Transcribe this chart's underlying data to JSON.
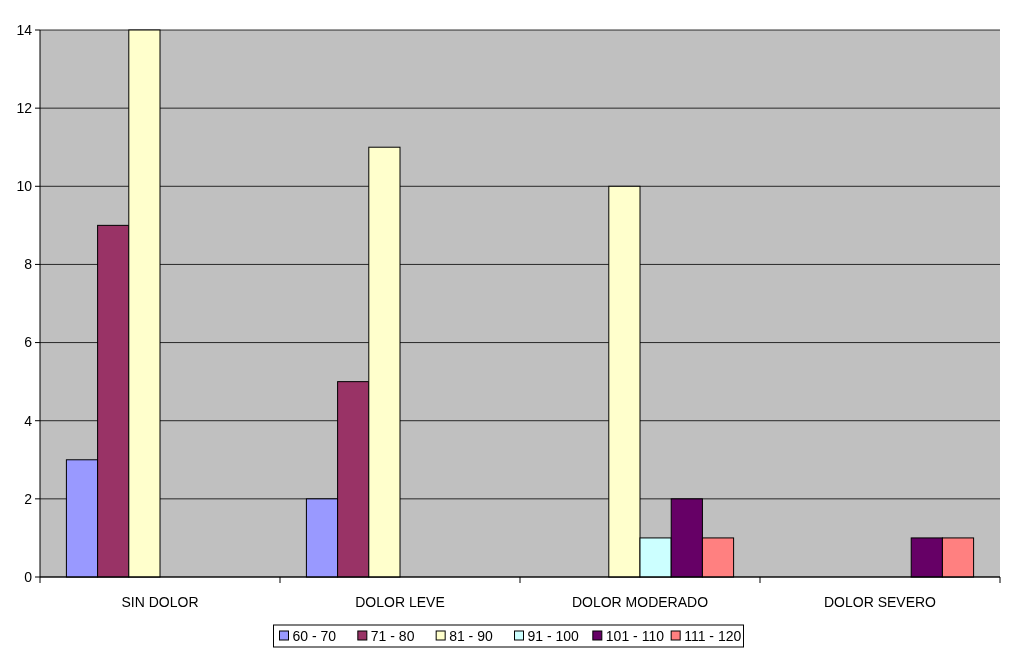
{
  "chart_data": {
    "type": "bar",
    "categories": [
      "SIN DOLOR",
      "DOLOR LEVE",
      "DOLOR MODERADO",
      "DOLOR SEVERO"
    ],
    "series": [
      {
        "name": "60 - 70",
        "color": "#9999ff",
        "values": [
          3,
          2,
          0,
          0
        ]
      },
      {
        "name": "71 - 80",
        "color": "#993366",
        "values": [
          9,
          5,
          0,
          0
        ]
      },
      {
        "name": "81 - 90",
        "color": "#ffffcc",
        "values": [
          14,
          11,
          10,
          0
        ]
      },
      {
        "name": "91 - 100",
        "color": "#ccffff",
        "values": [
          0,
          0,
          1,
          0
        ]
      },
      {
        "name": "101 - 110",
        "color": "#660066",
        "values": [
          0,
          0,
          2,
          1
        ]
      },
      {
        "name": "111 - 120",
        "color": "#ff8080",
        "values": [
          0,
          0,
          1,
          1
        ]
      }
    ],
    "ylim": [
      0,
      14
    ],
    "yticks": [
      0,
      2,
      4,
      6,
      8,
      10,
      12,
      14
    ],
    "grid": "y",
    "legend": "bottom"
  }
}
